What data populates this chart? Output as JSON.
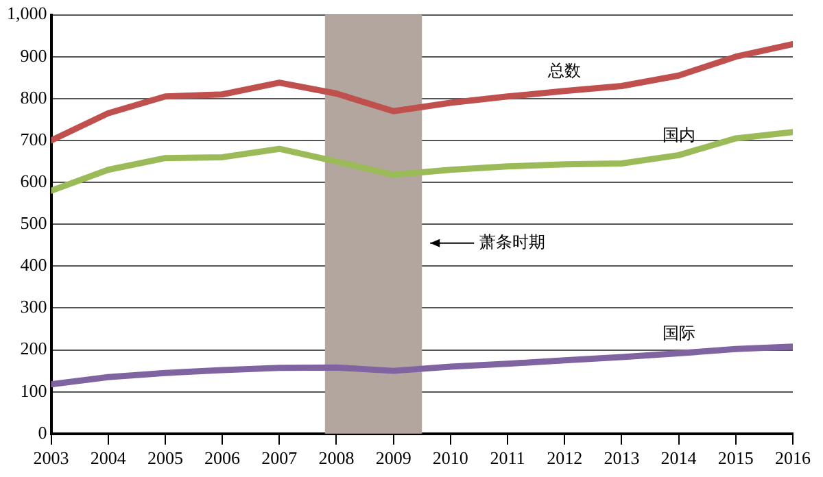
{
  "chart_data": {
    "type": "line",
    "x": [
      2003,
      2004,
      2005,
      2006,
      2007,
      2008,
      2009,
      2010,
      2011,
      2012,
      2013,
      2014,
      2015,
      2016
    ],
    "series": [
      {
        "name": "总数",
        "color": "#c0504d",
        "values": [
          700,
          765,
          805,
          810,
          838,
          812,
          770,
          790,
          805,
          818,
          830,
          855,
          900,
          930
        ]
      },
      {
        "name": "国内",
        "color": "#9bbb59",
        "values": [
          580,
          630,
          658,
          660,
          680,
          650,
          618,
          630,
          638,
          643,
          645,
          665,
          705,
          720
        ]
      },
      {
        "name": "国际",
        "color": "#8064a2",
        "values": [
          118,
          135,
          145,
          152,
          157,
          158,
          150,
          160,
          167,
          175,
          183,
          192,
          202,
          208
        ]
      }
    ],
    "xlim": [
      2003,
      2016
    ],
    "xticks": [
      2003,
      2004,
      2005,
      2006,
      2007,
      2008,
      2009,
      2010,
      2011,
      2012,
      2013,
      2014,
      2015,
      2016
    ],
    "ylim": [
      0,
      1000
    ],
    "yticks": [
      0,
      100,
      200,
      300,
      400,
      500,
      600,
      700,
      800,
      900,
      {
        "value": 1000,
        "label": "1,000"
      }
    ],
    "bands": [
      {
        "axis": "x",
        "from": 2007.8,
        "to": 2009.5,
        "label": "萧条时期",
        "color": "#b3a69f"
      }
    ],
    "grid": "y",
    "legend": false,
    "marker": "none",
    "line_style": "solid"
  }
}
